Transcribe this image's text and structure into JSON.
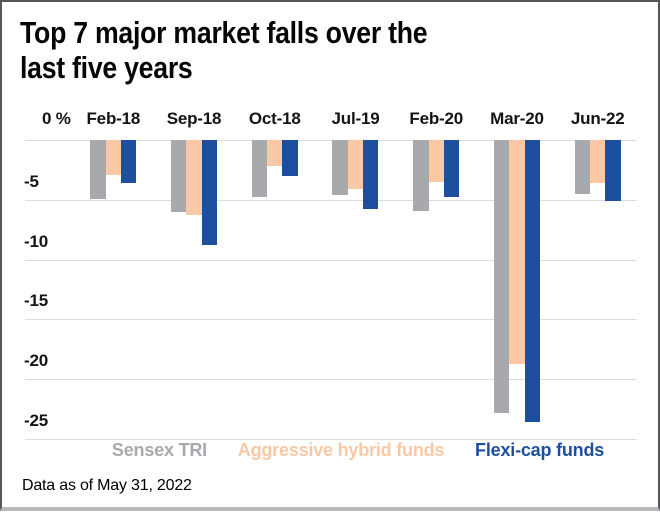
{
  "footnote": "Data as of May 31, 2022",
  "chart_data": {
    "type": "bar",
    "title": "Top 7 major market falls over the\nlast five years",
    "categories": [
      "Feb-18",
      "Sep-18",
      "Oct-18",
      "Jul-19",
      "Feb-20",
      "Mar-20",
      "Jun-22"
    ],
    "series": [
      {
        "name": "Sensex TRI",
        "color": "#a7a9ac",
        "values": [
          -4.9,
          -6.0,
          -4.8,
          -4.6,
          -5.9,
          -22.8,
          -4.5
        ]
      },
      {
        "name": "Aggressive hybrid funds",
        "color": "#fac8a4",
        "values": [
          -2.9,
          -6.3,
          -2.2,
          -4.1,
          -3.5,
          -18.7,
          -3.6
        ]
      },
      {
        "name": "Flexi-cap funds",
        "color": "#1e4f9f",
        "values": [
          -3.6,
          -8.8,
          -3.0,
          -5.8,
          -4.8,
          -23.6,
          -5.1
        ]
      }
    ],
    "unit": "%",
    "ylim": [
      -25,
      0
    ],
    "ytick_labels": [
      "0 %",
      "-5",
      "-10",
      "-15",
      "-20",
      "-25"
    ],
    "grid": true,
    "legend_position": "bottom",
    "colors": {
      "grid": "#dcdddf",
      "text": "#141414",
      "sensex": "#a7a9ac",
      "hybrid": "#fac8a4",
      "flexicap": "#1e4f9f"
    }
  }
}
